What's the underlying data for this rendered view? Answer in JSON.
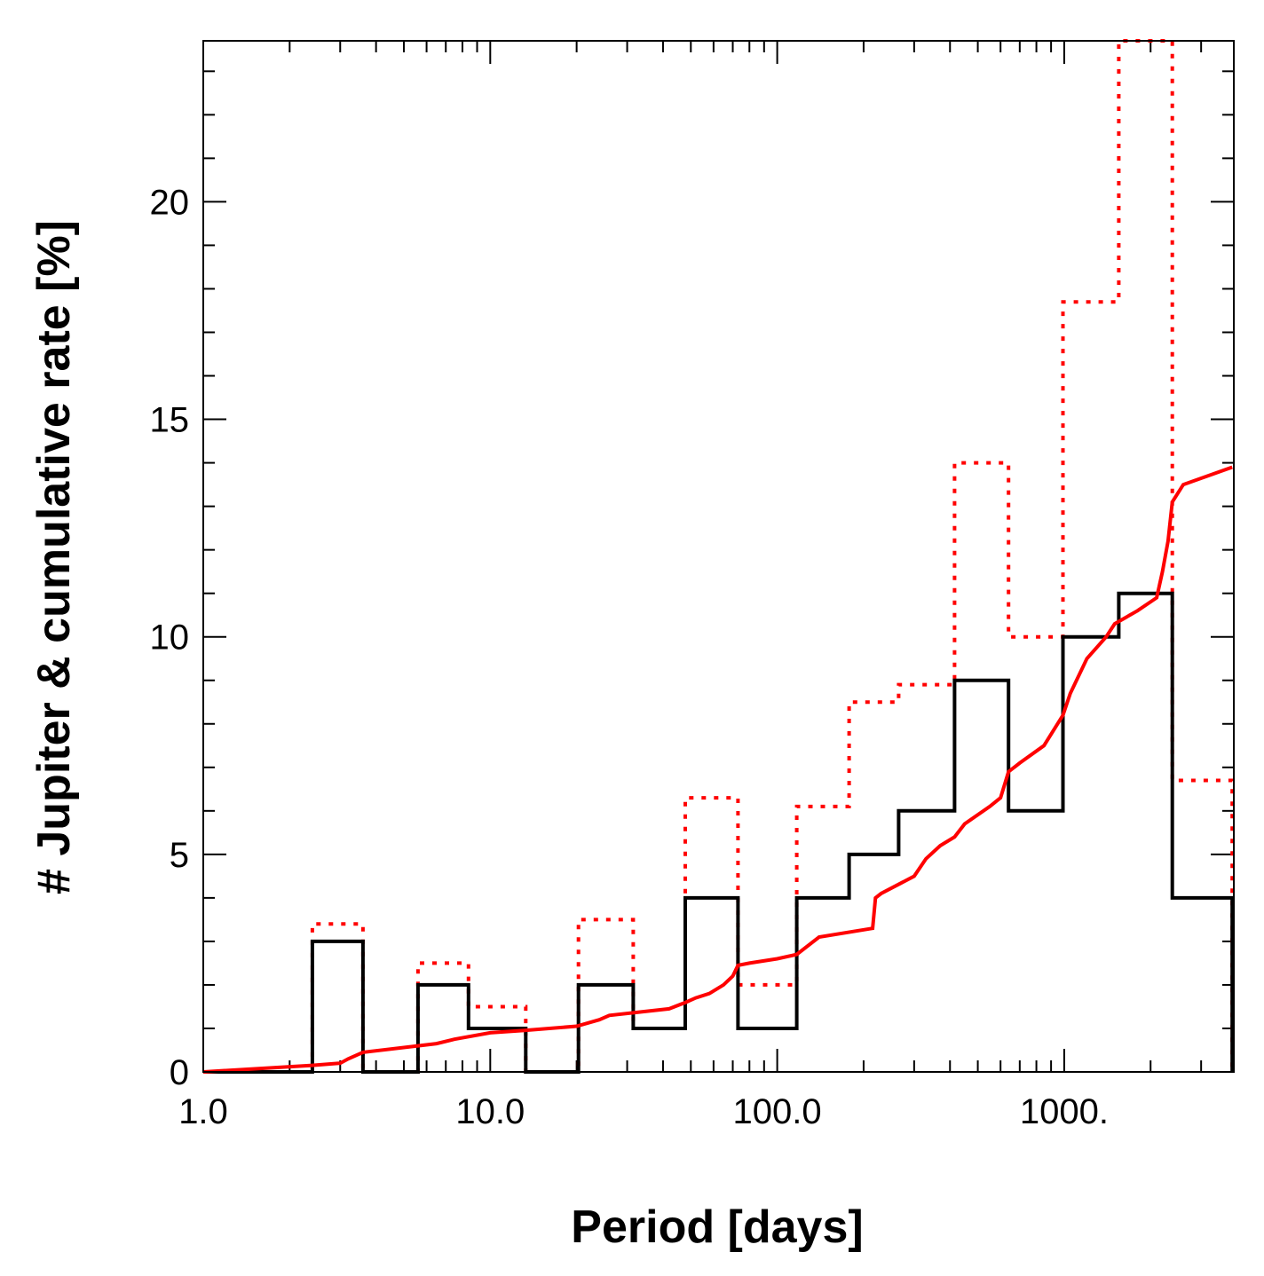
{
  "chart_data": {
    "type": "line",
    "xscale": "log",
    "xlim": [
      1.0,
      3900
    ],
    "ylim": [
      0,
      23.7
    ],
    "xlabel": "Period   [days]",
    "ylabel": "# Jupiter  &  cumulative rate  [%]",
    "xtick_labels": [
      {
        "value": 1,
        "label": "1.0"
      },
      {
        "value": 10,
        "label": "10.0"
      },
      {
        "value": 100,
        "label": "100.0"
      },
      {
        "value": 1000,
        "label": "1000."
      }
    ],
    "ytick_labels": [
      {
        "value": 0,
        "label": "0"
      },
      {
        "value": 5,
        "label": "5"
      },
      {
        "value": 10,
        "label": "10"
      },
      {
        "value": 15,
        "label": "15"
      },
      {
        "value": 20,
        "label": "20"
      }
    ],
    "grid": false,
    "series": [
      {
        "kind": "histogram",
        "color": "#000000",
        "line_style": "solid",
        "bin_edges": [
          1.0,
          2.4,
          3.6,
          5.6,
          8.4,
          13.3,
          20.3,
          31.5,
          47.8,
          73.0,
          117,
          178,
          265,
          415,
          640,
          990,
          1550,
          2380,
          3850
        ],
        "counts": [
          0,
          3,
          0,
          2,
          1,
          0,
          2,
          1,
          4,
          1,
          4,
          5,
          6,
          9,
          6,
          10,
          11,
          4
        ]
      },
      {
        "kind": "histogram",
        "color": "#ff0000",
        "line_style": "dotted",
        "bin_edges": [
          1.0,
          2.4,
          3.6,
          5.6,
          8.4,
          13.3,
          20.3,
          31.5,
          47.8,
          73.0,
          117,
          178,
          265,
          415,
          640,
          990,
          1550,
          2380,
          3850
        ],
        "counts": [
          0,
          3.4,
          0,
          2.5,
          1.5,
          0,
          3.5,
          1,
          6.3,
          2,
          6.1,
          8.5,
          8.9,
          14,
          10,
          17.7,
          23.7,
          6.7
        ]
      },
      {
        "kind": "cumulative",
        "color": "#ff0000",
        "line_style": "solid",
        "x": [
          1.0,
          2.4,
          3.0,
          3.2,
          3.6,
          5.6,
          6.5,
          7.5,
          10,
          13,
          20,
          24,
          26,
          42,
          48,
          52,
          58,
          65,
          70,
          73,
          80,
          100,
          117,
          140,
          215,
          220,
          230,
          300,
          330,
          370,
          415,
          450,
          550,
          600,
          640,
          700,
          850,
          990,
          1050,
          1200,
          1400,
          1500,
          1800,
          2100,
          2200,
          2300,
          2380,
          2600,
          3850
        ],
        "y": [
          0,
          0.15,
          0.2,
          0.3,
          0.45,
          0.6,
          0.65,
          0.75,
          0.9,
          0.95,
          1.05,
          1.2,
          1.3,
          1.45,
          1.6,
          1.7,
          1.8,
          2.0,
          2.2,
          2.45,
          2.5,
          2.6,
          2.7,
          3.1,
          3.3,
          4.0,
          4.1,
          4.5,
          4.9,
          5.2,
          5.4,
          5.7,
          6.1,
          6.3,
          6.9,
          7.1,
          7.5,
          8.2,
          8.7,
          9.5,
          10.0,
          10.3,
          10.6,
          10.9,
          11.5,
          12.2,
          13.1,
          13.5,
          13.9
        ]
      }
    ]
  }
}
